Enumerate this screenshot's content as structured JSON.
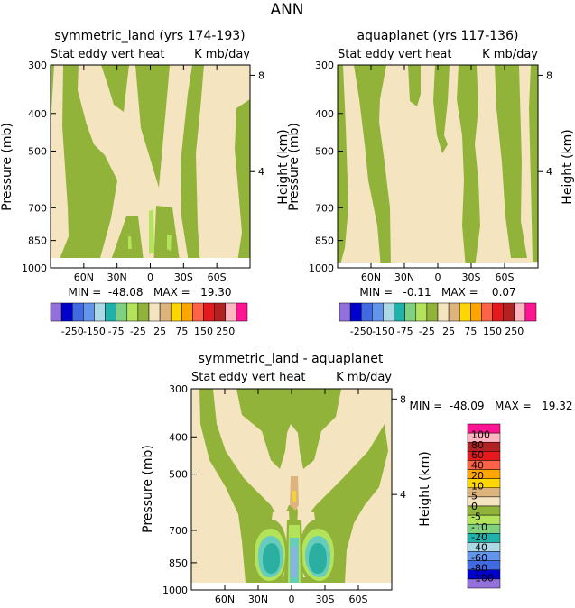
{
  "figure_title": "ANN",
  "colors": {
    "green": "#92B33A",
    "tan": "#F4E4BF",
    "light_green": "#B3E35B",
    "cyan": "#66CCBE",
    "teal": "#2AAFA0",
    "blue": "#8BB2E4",
    "orange_tan": "#DDB37E",
    "yellow": "#F4D236"
  },
  "chart_data": [
    {
      "id": "symmetric_land",
      "type": "contour",
      "title": "symmetric_land (yrs 174-193)",
      "subtitle_left": "Stat eddy vert heat",
      "subtitle_right": "K mb/day",
      "ylabel": "Pressure (mb)",
      "y2label": "Height (km)",
      "yticks": [
        "300",
        "400",
        "500",
        "700",
        "850",
        "1000"
      ],
      "ytick_values": [
        300,
        400,
        500,
        700,
        850,
        1000
      ],
      "y2ticks": [
        "8",
        "4"
      ],
      "y2tick_values": [
        8,
        4
      ],
      "xticks": [
        "60N",
        "30N",
        "0",
        "30S",
        "60S"
      ],
      "xtick_values": [
        60,
        30,
        0,
        -30,
        -60
      ],
      "xlim": [
        90,
        -90
      ],
      "ylim": [
        300,
        1000
      ],
      "stats": "MIN =  -48.08   MAX =   19.30",
      "colorbar": {
        "orientation": "horizontal",
        "labels": [
          "-250",
          "-150",
          "-75",
          "-25",
          "25",
          "75",
          "150",
          "250"
        ],
        "colors": [
          "#9370DB",
          "#0000CD",
          "#4169E1",
          "#6495ED",
          "#ADD8E6",
          "#20B2AA",
          "#7FD17F",
          "#B3E35B",
          "#92B33A",
          "#F4E4BF",
          "#DDB37E",
          "#FFD700",
          "#FFA500",
          "#FF6347",
          "#E41A1C",
          "#B22222",
          "#FFB6C1",
          "#FF1493"
        ]
      }
    },
    {
      "id": "aquaplanet",
      "type": "contour",
      "title": "aquaplanet (yrs 117-136)",
      "subtitle_left": "Stat eddy vert heat",
      "subtitle_right": "K mb/day",
      "ylabel": "Pressure (mb)",
      "y2label": "Height (km)",
      "yticks": [
        "300",
        "400",
        "500",
        "700",
        "850",
        "1000"
      ],
      "ytick_values": [
        300,
        400,
        500,
        700,
        850,
        1000
      ],
      "y2ticks": [
        "8",
        "4"
      ],
      "y2tick_values": [
        8,
        4
      ],
      "xticks": [
        "60N",
        "30N",
        "0",
        "30S",
        "60S"
      ],
      "xtick_values": [
        60,
        30,
        0,
        -30,
        -60
      ],
      "xlim": [
        90,
        -90
      ],
      "ylim": [
        300,
        1000
      ],
      "stats": "MIN =   -0.11   MAX =    0.07",
      "colorbar": {
        "orientation": "horizontal",
        "labels": [
          "-250",
          "-150",
          "-75",
          "-25",
          "25",
          "75",
          "150",
          "250"
        ],
        "colors": [
          "#9370DB",
          "#0000CD",
          "#4169E1",
          "#6495ED",
          "#ADD8E6",
          "#20B2AA",
          "#7FD17F",
          "#B3E35B",
          "#92B33A",
          "#F4E4BF",
          "#DDB37E",
          "#FFD700",
          "#FFA500",
          "#FF6347",
          "#E41A1C",
          "#B22222",
          "#FFB6C1",
          "#FF1493"
        ]
      }
    },
    {
      "id": "difference",
      "type": "contour",
      "title": "symmetric_land - aquaplanet",
      "subtitle_left": "Stat eddy vert heat",
      "subtitle_right": "K mb/day",
      "ylabel": "Pressure (mb)",
      "y2label": "Height (km)",
      "yticks": [
        "300",
        "400",
        "500",
        "700",
        "850",
        "1000"
      ],
      "ytick_values": [
        300,
        400,
        500,
        700,
        850,
        1000
      ],
      "y2ticks": [
        "8",
        "4"
      ],
      "y2tick_values": [
        8,
        4
      ],
      "xticks": [
        "60N",
        "30N",
        "0",
        "30S",
        "60S"
      ],
      "xtick_values": [
        60,
        30,
        0,
        -30,
        -60
      ],
      "xlim": [
        90,
        -90
      ],
      "ylim": [
        300,
        1000
      ],
      "stats": "MIN =  -48.09   MAX =   19.32",
      "colorbar": {
        "orientation": "vertical",
        "labels": [
          "100",
          "80",
          "60",
          "40",
          "20",
          "10",
          "5",
          "0",
          "-5",
          "-10",
          "-20",
          "-40",
          "-60",
          "-80",
          "-100"
        ],
        "colors": [
          "#FF1493",
          "#FFB6C1",
          "#B22222",
          "#E41A1C",
          "#FF6347",
          "#FFA500",
          "#FFD700",
          "#DDB37E",
          "#F4E4BF",
          "#92B33A",
          "#B3E35B",
          "#7FD17F",
          "#20B2AA",
          "#ADD8E6",
          "#6495ED",
          "#4169E1",
          "#0000CD",
          "#9370DB"
        ]
      }
    }
  ]
}
